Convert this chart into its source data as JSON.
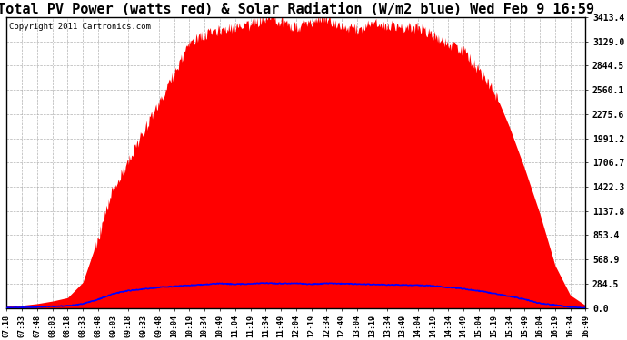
{
  "title": "Total PV Power (watts red) & Solar Radiation (W/m2 blue) Wed Feb 9 16:59",
  "copyright_text": "Copyright 2011 Cartronics.com",
  "title_fontsize": 11,
  "background_color": "#ffffff",
  "plot_bg_color": "#ffffff",
  "grid_color": "#aaaaaa",
  "y_max": 3413.4,
  "y_min": 0.0,
  "y_ticks": [
    0.0,
    284.5,
    568.9,
    853.4,
    1137.8,
    1422.3,
    1706.7,
    1991.2,
    2275.6,
    2560.1,
    2844.5,
    3129.0,
    3413.4
  ],
  "x_labels": [
    "07:18",
    "07:33",
    "07:48",
    "08:03",
    "08:18",
    "08:33",
    "08:48",
    "09:03",
    "09:18",
    "09:33",
    "09:48",
    "10:04",
    "10:19",
    "10:34",
    "10:49",
    "11:04",
    "11:19",
    "11:34",
    "11:49",
    "12:04",
    "12:19",
    "12:34",
    "12:49",
    "13:04",
    "13:19",
    "13:34",
    "13:49",
    "14:04",
    "14:19",
    "14:34",
    "14:49",
    "15:04",
    "15:19",
    "15:34",
    "15:49",
    "16:04",
    "16:19",
    "16:34",
    "16:49"
  ],
  "pv_power": [
    20,
    30,
    50,
    80,
    120,
    300,
    800,
    1500,
    1800,
    2100,
    2400,
    2800,
    3050,
    3200,
    3300,
    3350,
    3380,
    3390,
    3400,
    3410,
    3400,
    3390,
    3380,
    3370,
    3360,
    3340,
    3300,
    3250,
    3180,
    3100,
    3000,
    2850,
    2600,
    2200,
    1700,
    1100,
    500,
    150,
    30
  ],
  "pv_noise_seed": 123,
  "solar_radiation": [
    5,
    8,
    12,
    18,
    25,
    50,
    100,
    160,
    195,
    220,
    240,
    258,
    268,
    275,
    280,
    282,
    283,
    284,
    285,
    285,
    284,
    283,
    282,
    280,
    278,
    275,
    270,
    263,
    253,
    240,
    222,
    198,
    168,
    133,
    95,
    60,
    30,
    12,
    3
  ],
  "pv_color": "#ff0000",
  "solar_color": "#0000ff",
  "solar_lw": 1.2
}
